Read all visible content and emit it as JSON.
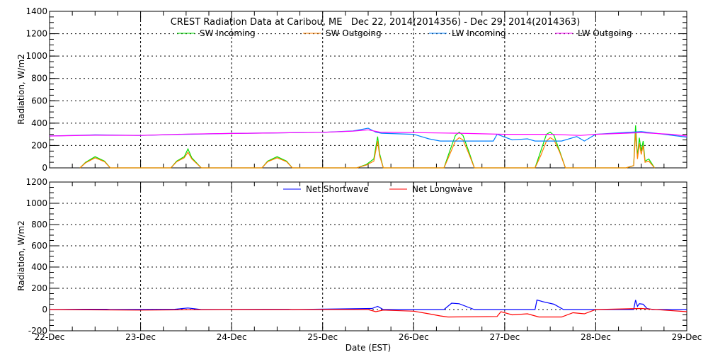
{
  "chart_data": [
    {
      "type": "line",
      "title": "CREST Radiation Data at Caribou, ME   Dec 22, 2014(2014356) - Dec 29, 2014(2014363)",
      "ylabel": "Radiation, W/m2",
      "xlabel": "",
      "ylim": [
        0,
        1400
      ],
      "yticks": [
        "0",
        "200",
        "400",
        "600",
        "800",
        "1000",
        "1200",
        "1400"
      ],
      "xlim": [
        "Dec 22 00:00",
        "Dec 29 00:00"
      ],
      "grid": true,
      "legend": "top",
      "series": [
        {
          "name": "SW Incoming",
          "color": "#00e000",
          "points": [
            [
              "Dec 22 08:00",
              0
            ],
            [
              "Dec 22 09:30",
              50
            ],
            [
              "Dec 22 12:00",
              100
            ],
            [
              "Dec 22 14:30",
              60
            ],
            [
              "Dec 22 16:00",
              0
            ],
            [
              "Dec 23 08:00",
              0
            ],
            [
              "Dec 23 09:30",
              60
            ],
            [
              "Dec 23 11:30",
              100
            ],
            [
              "Dec 23 12:30",
              170
            ],
            [
              "Dec 23 13:30",
              90
            ],
            [
              "Dec 23 16:00",
              0
            ],
            [
              "Dec 24 08:00",
              0
            ],
            [
              "Dec 24 09:30",
              60
            ],
            [
              "Dec 24 12:00",
              100
            ],
            [
              "Dec 24 14:30",
              60
            ],
            [
              "Dec 24 16:00",
              0
            ],
            [
              "Dec 25 09:00",
              0
            ],
            [
              "Dec 25 11:30",
              30
            ],
            [
              "Dec 25 13:30",
              80
            ],
            [
              "Dec 25 14:30",
              280
            ],
            [
              "Dec 25 15:00",
              130
            ],
            [
              "Dec 25 16:00",
              0
            ],
            [
              "Dec 26 08:00",
              0
            ],
            [
              "Dec 26 09:30",
              150
            ],
            [
              "Dec 26 11:00",
              290
            ],
            [
              "Dec 26 12:00",
              320
            ],
            [
              "Dec 26 13:00",
              290
            ],
            [
              "Dec 26 14:30",
              150
            ],
            [
              "Dec 26 16:00",
              0
            ],
            [
              "Dec 27 08:00",
              0
            ],
            [
              "Dec 27 09:30",
              150
            ],
            [
              "Dec 27 11:00",
              300
            ],
            [
              "Dec 27 12:00",
              320
            ],
            [
              "Dec 27 13:00",
              290
            ],
            [
              "Dec 27 14:30",
              150
            ],
            [
              "Dec 27 16:00",
              0
            ],
            [
              "Dec 28 08:00",
              0
            ],
            [
              "Dec 28 10:00",
              20
            ],
            [
              "Dec 28 10:30",
              380
            ],
            [
              "Dec 28 11:00",
              100
            ],
            [
              "Dec 28 11:30",
              270
            ],
            [
              "Dec 28 12:00",
              150
            ],
            [
              "Dec 28 12:30",
              240
            ],
            [
              "Dec 28 13:00",
              60
            ],
            [
              "Dec 28 14:00",
              80
            ],
            [
              "Dec 28 15:30",
              0
            ]
          ]
        },
        {
          "name": "SW Outgoing",
          "color": "#ff8000",
          "points": [
            [
              "Dec 22 08:00",
              0
            ],
            [
              "Dec 22 09:30",
              45
            ],
            [
              "Dec 22 12:00",
              90
            ],
            [
              "Dec 22 14:30",
              55
            ],
            [
              "Dec 22 16:00",
              0
            ],
            [
              "Dec 23 08:00",
              0
            ],
            [
              "Dec 23 09:30",
              55
            ],
            [
              "Dec 23 11:30",
              90
            ],
            [
              "Dec 23 12:30",
              140
            ],
            [
              "Dec 23 13:30",
              80
            ],
            [
              "Dec 23 16:00",
              0
            ],
            [
              "Dec 24 08:00",
              0
            ],
            [
              "Dec 24 09:30",
              55
            ],
            [
              "Dec 24 12:00",
              90
            ],
            [
              "Dec 24 14:30",
              55
            ],
            [
              "Dec 24 16:00",
              0
            ],
            [
              "Dec 25 09:00",
              0
            ],
            [
              "Dec 25 11:30",
              25
            ],
            [
              "Dec 25 13:30",
              60
            ],
            [
              "Dec 25 14:30",
              240
            ],
            [
              "Dec 25 15:00",
              110
            ],
            [
              "Dec 25 16:00",
              0
            ],
            [
              "Dec 26 08:00",
              0
            ],
            [
              "Dec 26 09:30",
              120
            ],
            [
              "Dec 26 11:00",
              240
            ],
            [
              "Dec 26 12:00",
              270
            ],
            [
              "Dec 26 13:00",
              250
            ],
            [
              "Dec 26 14:30",
              130
            ],
            [
              "Dec 26 16:00",
              0
            ],
            [
              "Dec 27 08:00",
              0
            ],
            [
              "Dec 27 09:30",
              110
            ],
            [
              "Dec 27 11:00",
              240
            ],
            [
              "Dec 27 12:00",
              270
            ],
            [
              "Dec 27 13:00",
              250
            ],
            [
              "Dec 27 14:30",
              140
            ],
            [
              "Dec 27 16:00",
              0
            ],
            [
              "Dec 28 08:00",
              0
            ],
            [
              "Dec 28 10:00",
              20
            ],
            [
              "Dec 28 10:30",
              310
            ],
            [
              "Dec 28 11:00",
              80
            ],
            [
              "Dec 28 11:30",
              220
            ],
            [
              "Dec 28 12:00",
              120
            ],
            [
              "Dec 28 12:30",
              200
            ],
            [
              "Dec 28 13:00",
              50
            ],
            [
              "Dec 28 14:00",
              60
            ],
            [
              "Dec 28 15:30",
              0
            ]
          ]
        },
        {
          "name": "LW Incoming",
          "color": "#0080ff",
          "points": [
            [
              "Dec 22 00:00",
              285
            ],
            [
              "Dec 22 12:00",
              295
            ],
            [
              "Dec 23 00:00",
              290
            ],
            [
              "Dec 23 12:00",
              300
            ],
            [
              "Dec 24 00:00",
              308
            ],
            [
              "Dec 25 00:00",
              318
            ],
            [
              "Dec 25 08:00",
              330
            ],
            [
              "Dec 25 12:00",
              355
            ],
            [
              "Dec 25 14:00",
              320
            ],
            [
              "Dec 25 15:30",
              310
            ],
            [
              "Dec 26 00:00",
              300
            ],
            [
              "Dec 26 04:00",
              260
            ],
            [
              "Dec 26 07:00",
              240
            ],
            [
              "Dec 26 21:00",
              240
            ],
            [
              "Dec 26 22:00",
              300
            ],
            [
              "Dec 27 02:00",
              250
            ],
            [
              "Dec 27 06:00",
              260
            ],
            [
              "Dec 27 08:00",
              240
            ],
            [
              "Dec 27 15:00",
              240
            ],
            [
              "Dec 27 19:00",
              280
            ],
            [
              "Dec 27 21:00",
              240
            ],
            [
              "Dec 28 00:00",
              300
            ],
            [
              "Dec 28 12:00",
              325
            ],
            [
              "Dec 28 18:00",
              300
            ],
            [
              "Dec 29 00:00",
              275
            ]
          ]
        },
        {
          "name": "LW Outgoing",
          "color": "#ff00ff",
          "points": [
            [
              "Dec 22 00:00",
              285
            ],
            [
              "Dec 22 12:00",
              292
            ],
            [
              "Dec 23 00:00",
              290
            ],
            [
              "Dec 23 12:00",
              302
            ],
            [
              "Dec 24 00:00",
              308
            ],
            [
              "Dec 25 00:00",
              318
            ],
            [
              "Dec 25 08:00",
              328
            ],
            [
              "Dec 25 12:00",
              340
            ],
            [
              "Dec 25 15:00",
              320
            ],
            [
              "Dec 26 12:00",
              310
            ],
            [
              "Dec 27 00:00",
              300
            ],
            [
              "Dec 27 12:00",
              300
            ],
            [
              "Dec 27 20:00",
              290
            ],
            [
              "Dec 28 00:00",
              300
            ],
            [
              "Dec 28 12:00",
              315
            ],
            [
              "Dec 28 20:00",
              300
            ],
            [
              "Dec 29 00:00",
              285
            ]
          ]
        }
      ]
    },
    {
      "type": "line",
      "title": "",
      "ylabel": "Radiation, W/m2",
      "xlabel": "Date (EST)",
      "ylim": [
        -200,
        1200
      ],
      "yticks": [
        "-200",
        "0",
        "200",
        "400",
        "600",
        "800",
        "1000",
        "1200"
      ],
      "xticks": [
        "22-Dec",
        "23-Dec",
        "24-Dec",
        "25-Dec",
        "26-Dec",
        "27-Dec",
        "28-Dec",
        "29-Dec"
      ],
      "xlim": [
        "Dec 22 00:00",
        "Dec 29 00:00"
      ],
      "grid": true,
      "legend": "top",
      "series": [
        {
          "name": "Net Shortwave",
          "color": "#0000ff",
          "points": [
            [
              "Dec 22 00:00",
              0
            ],
            [
              "Dec 22 09:00",
              3
            ],
            [
              "Dec 22 15:00",
              3
            ],
            [
              "Dec 22 16:00",
              0
            ],
            [
              "Dec 23 09:00",
              3
            ],
            [
              "Dec 23 12:30",
              15
            ],
            [
              "Dec 23 16:00",
              0
            ],
            [
              "Dec 24 09:00",
              3
            ],
            [
              "Dec 24 15:00",
              3
            ],
            [
              "Dec 24 16:00",
              0
            ],
            [
              "Dec 25 13:00",
              10
            ],
            [
              "Dec 25 14:30",
              30
            ],
            [
              "Dec 25 16:00",
              0
            ],
            [
              "Dec 26 08:00",
              0
            ],
            [
              "Dec 26 10:00",
              60
            ],
            [
              "Dec 26 12:00",
              55
            ],
            [
              "Dec 26 14:30",
              20
            ],
            [
              "Dec 26 16:00",
              0
            ],
            [
              "Dec 27 08:00",
              0
            ],
            [
              "Dec 27 08:30",
              90
            ],
            [
              "Dec 27 10:00",
              75
            ],
            [
              "Dec 27 13:00",
              50
            ],
            [
              "Dec 27 15:30",
              0
            ],
            [
              "Dec 28 10:00",
              0
            ],
            [
              "Dec 28 10:30",
              90
            ],
            [
              "Dec 28 11:00",
              30
            ],
            [
              "Dec 28 11:30",
              55
            ],
            [
              "Dec 28 12:30",
              50
            ],
            [
              "Dec 28 13:30",
              10
            ],
            [
              "Dec 28 15:00",
              0
            ],
            [
              "Dec 29 00:00",
              0
            ]
          ]
        },
        {
          "name": "Net Longwave",
          "color": "#ff0000",
          "points": [
            [
              "Dec 22 00:00",
              0
            ],
            [
              "Dec 23 00:00",
              -5
            ],
            [
              "Dec 24 00:00",
              0
            ],
            [
              "Dec 25 12:00",
              0
            ],
            [
              "Dec 25 14:00",
              -20
            ],
            [
              "Dec 25 16:00",
              -5
            ],
            [
              "Dec 26 00:00",
              -15
            ],
            [
              "Dec 26 04:00",
              -40
            ],
            [
              "Dec 26 07:00",
              -60
            ],
            [
              "Dec 26 09:00",
              -70
            ],
            [
              "Dec 26 22:00",
              -65
            ],
            [
              "Dec 26 23:00",
              -20
            ],
            [
              "Dec 27 02:00",
              -50
            ],
            [
              "Dec 27 06:00",
              -40
            ],
            [
              "Dec 27 09:00",
              -70
            ],
            [
              "Dec 27 15:00",
              -70
            ],
            [
              "Dec 27 18:00",
              -30
            ],
            [
              "Dec 27 21:00",
              -40
            ],
            [
              "Dec 28 00:00",
              0
            ],
            [
              "Dec 28 12:00",
              10
            ],
            [
              "Dec 28 18:00",
              -5
            ],
            [
              "Dec 29 00:00",
              -20
            ]
          ]
        }
      ]
    }
  ]
}
